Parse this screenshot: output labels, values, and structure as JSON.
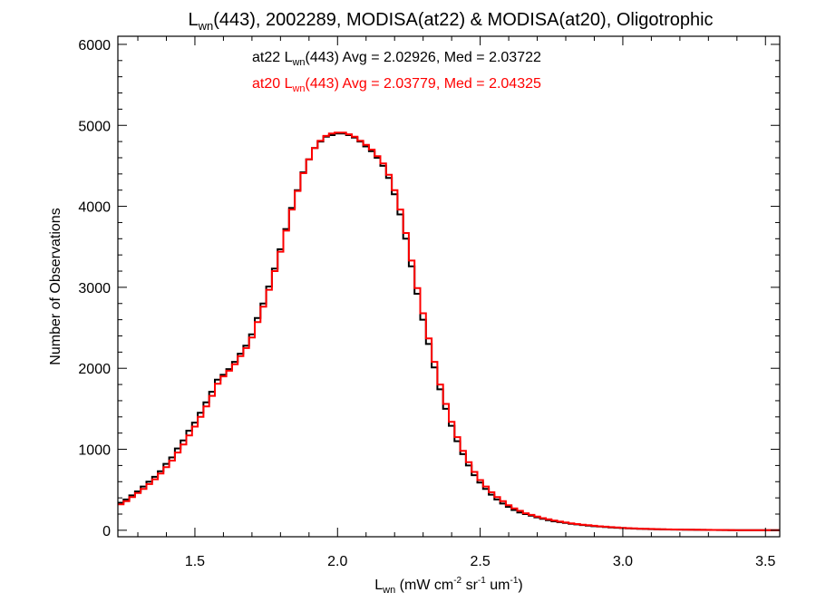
{
  "chart_data": {
    "type": "line",
    "style": "step-histogram",
    "title": {
      "prefix": "L",
      "sub": "wn",
      "suffix": "(443), 2002289, MODISA(at22) & MODISA(at20), Oligotrophic"
    },
    "xlabel": {
      "prefix": "L",
      "sub": "wn",
      "unit_parts": [
        " (mW cm",
        "-2",
        " sr",
        "-1",
        " um",
        "-1",
        ")"
      ]
    },
    "ylabel": "Number of Observations",
    "xlim": [
      1.23,
      3.55
    ],
    "ylim": [
      -80,
      6100
    ],
    "xticks": [
      1.5,
      2.0,
      2.5,
      3.0,
      3.5
    ],
    "xtick_labels": [
      "1.5",
      "2.0",
      "2.5",
      "3.0",
      "3.5"
    ],
    "yticks": [
      0,
      1000,
      2000,
      3000,
      4000,
      5000,
      6000
    ],
    "ytick_labels": [
      "0",
      "1000",
      "2000",
      "3000",
      "4000",
      "5000",
      "6000"
    ],
    "grid": false,
    "series": [
      {
        "name": "at22",
        "color": "#000000",
        "stats": {
          "pre": "at22 L",
          "sub": "wn",
          "post": "(443) Avg = 2.02926, Med = 2.03722"
        },
        "x": [
          1.23,
          1.25,
          1.27,
          1.29,
          1.31,
          1.33,
          1.35,
          1.37,
          1.39,
          1.41,
          1.43,
          1.45,
          1.47,
          1.49,
          1.51,
          1.53,
          1.55,
          1.57,
          1.59,
          1.61,
          1.63,
          1.65,
          1.67,
          1.69,
          1.71,
          1.73,
          1.75,
          1.77,
          1.79,
          1.81,
          1.83,
          1.85,
          1.87,
          1.89,
          1.91,
          1.93,
          1.95,
          1.97,
          1.99,
          2.01,
          2.03,
          2.05,
          2.07,
          2.09,
          2.11,
          2.13,
          2.15,
          2.17,
          2.19,
          2.21,
          2.23,
          2.25,
          2.27,
          2.29,
          2.31,
          2.33,
          2.35,
          2.37,
          2.39,
          2.41,
          2.43,
          2.45,
          2.47,
          2.49,
          2.51,
          2.53,
          2.55,
          2.57,
          2.59,
          2.61,
          2.63,
          2.65,
          2.67,
          2.69,
          2.71,
          2.73,
          2.75,
          2.77,
          2.79,
          2.81,
          2.83,
          2.85,
          2.87,
          2.89,
          2.91,
          2.93,
          2.95,
          2.97,
          2.99,
          3.01,
          3.03,
          3.05,
          3.07,
          3.09,
          3.11,
          3.13,
          3.15,
          3.17,
          3.19,
          3.21,
          3.23,
          3.25,
          3.27,
          3.29,
          3.31,
          3.33,
          3.35,
          3.37,
          3.39,
          3.41,
          3.43,
          3.45,
          3.47,
          3.49,
          3.51,
          3.53
        ],
        "y": [
          340,
          380,
          430,
          480,
          540,
          600,
          660,
          730,
          820,
          900,
          1010,
          1110,
          1230,
          1330,
          1450,
          1580,
          1710,
          1860,
          1920,
          1990,
          2080,
          2180,
          2280,
          2420,
          2620,
          2800,
          3010,
          3230,
          3470,
          3720,
          3980,
          4200,
          4420,
          4580,
          4720,
          4800,
          4860,
          4880,
          4900,
          4900,
          4880,
          4850,
          4800,
          4740,
          4680,
          4600,
          4500,
          4350,
          4150,
          3900,
          3600,
          3260,
          2920,
          2600,
          2300,
          2010,
          1740,
          1500,
          1290,
          1100,
          940,
          800,
          680,
          590,
          510,
          440,
          380,
          330,
          290,
          250,
          220,
          200,
          180,
          160,
          140,
          125,
          110,
          100,
          90,
          80,
          72,
          64,
          57,
          50,
          45,
          40,
          35,
          31,
          27,
          24,
          21,
          18,
          16,
          14,
          12,
          11,
          10,
          9,
          8,
          7,
          6,
          5,
          5,
          4,
          4,
          3,
          3,
          2,
          2,
          2,
          2,
          1,
          1,
          1,
          1,
          1
        ]
      },
      {
        "name": "at20",
        "color": "#ff0000",
        "stats": {
          "pre": "at20 L",
          "sub": "wn",
          "post": "(443) Avg = 2.03779, Med = 2.04325"
        },
        "x": [
          1.23,
          1.25,
          1.27,
          1.29,
          1.31,
          1.33,
          1.35,
          1.37,
          1.39,
          1.41,
          1.43,
          1.45,
          1.47,
          1.49,
          1.51,
          1.53,
          1.55,
          1.57,
          1.59,
          1.61,
          1.63,
          1.65,
          1.67,
          1.69,
          1.71,
          1.73,
          1.75,
          1.77,
          1.79,
          1.81,
          1.83,
          1.85,
          1.87,
          1.89,
          1.91,
          1.93,
          1.95,
          1.97,
          1.99,
          2.01,
          2.03,
          2.05,
          2.07,
          2.09,
          2.11,
          2.13,
          2.15,
          2.17,
          2.19,
          2.21,
          2.23,
          2.25,
          2.27,
          2.29,
          2.31,
          2.33,
          2.35,
          2.37,
          2.39,
          2.41,
          2.43,
          2.45,
          2.47,
          2.49,
          2.51,
          2.53,
          2.55,
          2.57,
          2.59,
          2.61,
          2.63,
          2.65,
          2.67,
          2.69,
          2.71,
          2.73,
          2.75,
          2.77,
          2.79,
          2.81,
          2.83,
          2.85,
          2.87,
          2.89,
          2.91,
          2.93,
          2.95,
          2.97,
          2.99,
          3.01,
          3.03,
          3.05,
          3.07,
          3.09,
          3.11,
          3.13,
          3.15,
          3.17,
          3.19,
          3.21,
          3.23,
          3.25,
          3.27,
          3.29,
          3.31,
          3.33,
          3.35,
          3.37,
          3.39,
          3.41,
          3.43,
          3.45,
          3.47,
          3.49,
          3.51,
          3.53
        ],
        "y": [
          320,
          360,
          410,
          460,
          510,
          570,
          630,
          700,
          780,
          860,
          960,
          1060,
          1170,
          1280,
          1400,
          1530,
          1660,
          1810,
          1900,
          1970,
          2050,
          2150,
          2250,
          2380,
          2570,
          2760,
          2970,
          3200,
          3440,
          3700,
          3960,
          4190,
          4410,
          4580,
          4720,
          4810,
          4870,
          4900,
          4910,
          4910,
          4890,
          4860,
          4810,
          4760,
          4700,
          4620,
          4530,
          4390,
          4200,
          3960,
          3670,
          3330,
          2990,
          2680,
          2370,
          2080,
          1800,
          1560,
          1340,
          1150,
          980,
          840,
          720,
          620,
          540,
          470,
          410,
          360,
          310,
          270,
          240,
          210,
          190,
          170,
          150,
          135,
          120,
          108,
          96,
          86,
          77,
          69,
          62,
          55,
          49,
          44,
          39,
          34,
          30,
          26,
          23,
          20,
          18,
          16,
          14,
          12,
          11,
          10,
          9,
          8,
          7,
          6,
          5,
          5,
          4,
          4,
          3,
          3,
          2,
          2,
          2,
          1,
          1,
          1,
          1,
          1
        ]
      }
    ]
  }
}
